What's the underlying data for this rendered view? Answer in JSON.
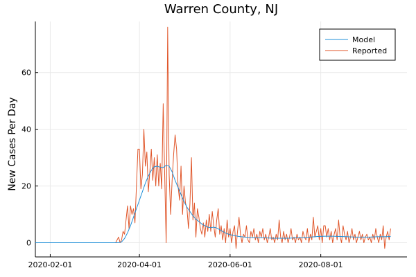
{
  "chart_data": {
    "type": "line",
    "title": "Warren County, NJ",
    "xlabel": "",
    "ylabel": "New Cases Per Day",
    "x_axis_type": "date",
    "xlim": [
      "2020-01-22",
      "2020-09-28"
    ],
    "ylim": [
      -5,
      78
    ],
    "x_ticks": [
      "2020-02-01",
      "2020-04-01",
      "2020-06-01",
      "2020-08-01"
    ],
    "y_ticks": [
      0,
      20,
      40,
      60
    ],
    "grid": true,
    "legend_position": "top-right",
    "series": [
      {
        "name": "Model",
        "color": "#1f8fd8",
        "points": [
          [
            "2020-01-22",
            0
          ],
          [
            "2020-03-18",
            0
          ],
          [
            "2020-03-20",
            0.3
          ],
          [
            "2020-03-22",
            1.5
          ],
          [
            "2020-03-24",
            3.5
          ],
          [
            "2020-03-26",
            6
          ],
          [
            "2020-03-28",
            9
          ],
          [
            "2020-03-30",
            12
          ],
          [
            "2020-04-01",
            15
          ],
          [
            "2020-04-03",
            18
          ],
          [
            "2020-04-05",
            21
          ],
          [
            "2020-04-07",
            23.5
          ],
          [
            "2020-04-09",
            25.5
          ],
          [
            "2020-04-11",
            26.8
          ],
          [
            "2020-04-13",
            27
          ],
          [
            "2020-04-15",
            26.6
          ],
          [
            "2020-04-17",
            26.5
          ],
          [
            "2020-04-19",
            27.3
          ],
          [
            "2020-04-21",
            27
          ],
          [
            "2020-04-23",
            25
          ],
          [
            "2020-04-25",
            22
          ],
          [
            "2020-04-27",
            19.5
          ],
          [
            "2020-04-29",
            17
          ],
          [
            "2020-05-01",
            14.5
          ],
          [
            "2020-05-03",
            12.5
          ],
          [
            "2020-05-05",
            11
          ],
          [
            "2020-05-07",
            9.5
          ],
          [
            "2020-05-09",
            8.3
          ],
          [
            "2020-05-11",
            7.5
          ],
          [
            "2020-05-13",
            6.6
          ],
          [
            "2020-05-15",
            6
          ],
          [
            "2020-05-17",
            5.5
          ],
          [
            "2020-05-19",
            5.3
          ],
          [
            "2020-05-21",
            5.5
          ],
          [
            "2020-05-23",
            5.2
          ],
          [
            "2020-05-25",
            4.6
          ],
          [
            "2020-05-27",
            4
          ],
          [
            "2020-05-29",
            3.4
          ],
          [
            "2020-05-31",
            3
          ],
          [
            "2020-06-03",
            2.6
          ],
          [
            "2020-06-07",
            2.2
          ],
          [
            "2020-06-11",
            2
          ],
          [
            "2020-06-15",
            1.8
          ],
          [
            "2020-06-20",
            1.7
          ],
          [
            "2020-06-25",
            1.7
          ],
          [
            "2020-06-30",
            1.6
          ],
          [
            "2020-07-05",
            1.6
          ],
          [
            "2020-07-10",
            1.6
          ],
          [
            "2020-07-15",
            1.7
          ],
          [
            "2020-07-20",
            1.8
          ],
          [
            "2020-07-25",
            2
          ],
          [
            "2020-07-30",
            2.2
          ],
          [
            "2020-08-04",
            2.3
          ],
          [
            "2020-08-09",
            2.3
          ],
          [
            "2020-08-14",
            2.2
          ],
          [
            "2020-08-19",
            2.1
          ],
          [
            "2020-08-24",
            2
          ],
          [
            "2020-08-29",
            2
          ],
          [
            "2020-09-03",
            2
          ],
          [
            "2020-09-08",
            2.1
          ],
          [
            "2020-09-13",
            2.1
          ],
          [
            "2020-09-17",
            2.2
          ]
        ]
      },
      {
        "name": "Reported",
        "color": "#e0562a",
        "points": [
          [
            "2020-01-22",
            0
          ],
          [
            "2020-03-16",
            0
          ],
          [
            "2020-03-18",
            2
          ],
          [
            "2020-03-19",
            0
          ],
          [
            "2020-03-20",
            1
          ],
          [
            "2020-03-21",
            4
          ],
          [
            "2020-03-22",
            3
          ],
          [
            "2020-03-23",
            8
          ],
          [
            "2020-03-24",
            13
          ],
          [
            "2020-03-25",
            5
          ],
          [
            "2020-03-26",
            13
          ],
          [
            "2020-03-27",
            10
          ],
          [
            "2020-03-28",
            12
          ],
          [
            "2020-03-29",
            7
          ],
          [
            "2020-03-30",
            20
          ],
          [
            "2020-03-31",
            33
          ],
          [
            "2020-04-01",
            33
          ],
          [
            "2020-04-02",
            19
          ],
          [
            "2020-04-03",
            24
          ],
          [
            "2020-04-04",
            40
          ],
          [
            "2020-04-05",
            27
          ],
          [
            "2020-04-06",
            32
          ],
          [
            "2020-04-07",
            18
          ],
          [
            "2020-04-08",
            25
          ],
          [
            "2020-04-09",
            33
          ],
          [
            "2020-04-10",
            22
          ],
          [
            "2020-04-11",
            30
          ],
          [
            "2020-04-12",
            20
          ],
          [
            "2020-04-13",
            31
          ],
          [
            "2020-04-14",
            20
          ],
          [
            "2020-04-15",
            28
          ],
          [
            "2020-04-16",
            19
          ],
          [
            "2020-04-17",
            49
          ],
          [
            "2020-04-18",
            24
          ],
          [
            "2020-04-19",
            0
          ],
          [
            "2020-04-20",
            76
          ],
          [
            "2020-04-21",
            24
          ],
          [
            "2020-04-22",
            10
          ],
          [
            "2020-04-23",
            22
          ],
          [
            "2020-04-24",
            31
          ],
          [
            "2020-04-25",
            38
          ],
          [
            "2020-04-26",
            33
          ],
          [
            "2020-04-27",
            20
          ],
          [
            "2020-04-28",
            15
          ],
          [
            "2020-04-29",
            27
          ],
          [
            "2020-04-30",
            10
          ],
          [
            "2020-05-01",
            20
          ],
          [
            "2020-05-02",
            14
          ],
          [
            "2020-05-03",
            12
          ],
          [
            "2020-05-04",
            5
          ],
          [
            "2020-05-05",
            14
          ],
          [
            "2020-05-06",
            30
          ],
          [
            "2020-05-07",
            8
          ],
          [
            "2020-05-08",
            14
          ],
          [
            "2020-05-09",
            2
          ],
          [
            "2020-05-10",
            12
          ],
          [
            "2020-05-11",
            9
          ],
          [
            "2020-05-12",
            5
          ],
          [
            "2020-05-13",
            3
          ],
          [
            "2020-05-14",
            7
          ],
          [
            "2020-05-15",
            2
          ],
          [
            "2020-05-16",
            8
          ],
          [
            "2020-05-17",
            4
          ],
          [
            "2020-05-18",
            10
          ],
          [
            "2020-05-19",
            4
          ],
          [
            "2020-05-20",
            11
          ],
          [
            "2020-05-21",
            6
          ],
          [
            "2020-05-22",
            2
          ],
          [
            "2020-05-23",
            8
          ],
          [
            "2020-05-24",
            12
          ],
          [
            "2020-05-25",
            3
          ],
          [
            "2020-05-26",
            6
          ],
          [
            "2020-05-27",
            1
          ],
          [
            "2020-05-28",
            5
          ],
          [
            "2020-05-29",
            0
          ],
          [
            "2020-05-30",
            8
          ],
          [
            "2020-05-31",
            2
          ],
          [
            "2020-06-01",
            5
          ],
          [
            "2020-06-02",
            0
          ],
          [
            "2020-06-03",
            4
          ],
          [
            "2020-06-04",
            6
          ],
          [
            "2020-06-05",
            -2
          ],
          [
            "2020-06-06",
            4
          ],
          [
            "2020-06-07",
            9
          ],
          [
            "2020-06-08",
            3
          ],
          [
            "2020-06-09",
            0
          ],
          [
            "2020-06-10",
            3
          ],
          [
            "2020-06-11",
            2
          ],
          [
            "2020-06-12",
            6
          ],
          [
            "2020-06-13",
            1
          ],
          [
            "2020-06-14",
            0
          ],
          [
            "2020-06-15",
            4
          ],
          [
            "2020-06-16",
            2
          ],
          [
            "2020-06-17",
            5
          ],
          [
            "2020-06-18",
            1
          ],
          [
            "2020-06-19",
            3
          ],
          [
            "2020-06-20",
            0
          ],
          [
            "2020-06-21",
            4
          ],
          [
            "2020-06-22",
            2
          ],
          [
            "2020-06-23",
            5
          ],
          [
            "2020-06-24",
            1
          ],
          [
            "2020-06-25",
            3
          ],
          [
            "2020-06-26",
            0
          ],
          [
            "2020-06-27",
            2
          ],
          [
            "2020-06-28",
            5
          ],
          [
            "2020-06-29",
            1
          ],
          [
            "2020-06-30",
            2
          ],
          [
            "2020-07-01",
            0
          ],
          [
            "2020-07-02",
            3
          ],
          [
            "2020-07-03",
            1
          ],
          [
            "2020-07-04",
            8
          ],
          [
            "2020-07-05",
            2
          ],
          [
            "2020-07-06",
            0
          ],
          [
            "2020-07-07",
            4
          ],
          [
            "2020-07-08",
            1
          ],
          [
            "2020-07-09",
            3
          ],
          [
            "2020-07-10",
            0
          ],
          [
            "2020-07-11",
            2
          ],
          [
            "2020-07-12",
            5
          ],
          [
            "2020-07-13",
            1
          ],
          [
            "2020-07-14",
            2
          ],
          [
            "2020-07-15",
            0
          ],
          [
            "2020-07-16",
            3
          ],
          [
            "2020-07-17",
            1
          ],
          [
            "2020-07-18",
            2
          ],
          [
            "2020-07-19",
            0
          ],
          [
            "2020-07-20",
            4
          ],
          [
            "2020-07-21",
            2
          ],
          [
            "2020-07-22",
            1
          ],
          [
            "2020-07-23",
            5
          ],
          [
            "2020-07-24",
            0
          ],
          [
            "2020-07-25",
            3
          ],
          [
            "2020-07-26",
            1
          ],
          [
            "2020-07-27",
            9
          ],
          [
            "2020-07-28",
            2
          ],
          [
            "2020-07-29",
            4
          ],
          [
            "2020-07-30",
            6
          ],
          [
            "2020-07-31",
            1
          ],
          [
            "2020-08-01",
            5
          ],
          [
            "2020-08-02",
            0
          ],
          [
            "2020-08-03",
            6
          ],
          [
            "2020-08-04",
            6
          ],
          [
            "2020-08-05",
            2
          ],
          [
            "2020-08-06",
            5
          ],
          [
            "2020-08-07",
            1
          ],
          [
            "2020-08-08",
            4
          ],
          [
            "2020-08-09",
            0
          ],
          [
            "2020-08-10",
            3
          ],
          [
            "2020-08-11",
            5
          ],
          [
            "2020-08-12",
            1
          ],
          [
            "2020-08-13",
            8
          ],
          [
            "2020-08-14",
            2
          ],
          [
            "2020-08-15",
            0
          ],
          [
            "2020-08-16",
            6
          ],
          [
            "2020-08-17",
            3
          ],
          [
            "2020-08-18",
            1
          ],
          [
            "2020-08-19",
            4
          ],
          [
            "2020-08-20",
            0
          ],
          [
            "2020-08-21",
            2
          ],
          [
            "2020-08-22",
            5
          ],
          [
            "2020-08-23",
            1
          ],
          [
            "2020-08-24",
            3
          ],
          [
            "2020-08-25",
            0
          ],
          [
            "2020-08-26",
            2
          ],
          [
            "2020-08-27",
            4
          ],
          [
            "2020-08-28",
            1
          ],
          [
            "2020-08-29",
            3
          ],
          [
            "2020-08-30",
            0
          ],
          [
            "2020-08-31",
            2
          ],
          [
            "2020-09-01",
            3
          ],
          [
            "2020-09-02",
            1
          ],
          [
            "2020-09-03",
            2
          ],
          [
            "2020-09-04",
            0
          ],
          [
            "2020-09-05",
            3
          ],
          [
            "2020-09-06",
            1
          ],
          [
            "2020-09-07",
            5
          ],
          [
            "2020-09-08",
            2
          ],
          [
            "2020-09-09",
            0
          ],
          [
            "2020-09-10",
            3
          ],
          [
            "2020-09-11",
            1
          ],
          [
            "2020-09-12",
            6
          ],
          [
            "2020-09-13",
            -2
          ],
          [
            "2020-09-14",
            2
          ],
          [
            "2020-09-15",
            4
          ],
          [
            "2020-09-16",
            1
          ],
          [
            "2020-09-17",
            5
          ]
        ]
      }
    ]
  }
}
